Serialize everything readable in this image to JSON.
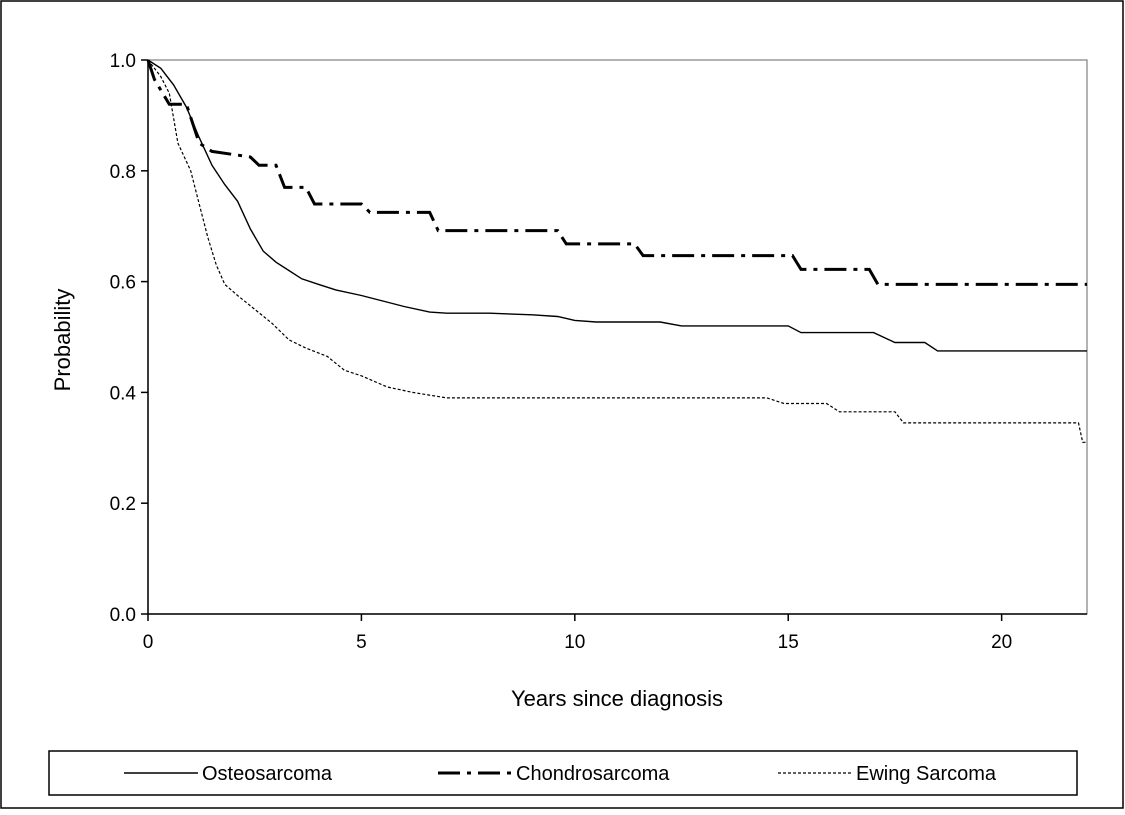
{
  "chart_data": {
    "type": "line",
    "title": "",
    "xlabel": "Years since diagnosis",
    "ylabel": "Probability",
    "xlim": [
      0,
      22
    ],
    "ylim": [
      0.0,
      1.0
    ],
    "x_ticks": [
      0,
      5,
      10,
      15,
      20
    ],
    "y_ticks": [
      0.0,
      0.2,
      0.4,
      0.6,
      0.8,
      1.0
    ],
    "x_tick_labels": [
      "0",
      "5",
      "10",
      "15",
      "20"
    ],
    "y_tick_labels": [
      "0.0",
      "0.2",
      "0.4",
      "0.6",
      "0.8",
      "1.0"
    ],
    "grid": false,
    "legend_position": "bottom",
    "series": [
      {
        "name": "Osteosarcoma",
        "style": "solid",
        "color": "#000000",
        "points": [
          [
            0,
            1.0
          ],
          [
            0.3,
            0.985
          ],
          [
            0.6,
            0.955
          ],
          [
            0.9,
            0.915
          ],
          [
            1.2,
            0.86
          ],
          [
            1.5,
            0.81
          ],
          [
            1.8,
            0.775
          ],
          [
            2.1,
            0.745
          ],
          [
            2.4,
            0.695
          ],
          [
            2.7,
            0.655
          ],
          [
            3.0,
            0.635
          ],
          [
            3.3,
            0.62
          ],
          [
            3.6,
            0.605
          ],
          [
            4.0,
            0.595
          ],
          [
            4.4,
            0.585
          ],
          [
            5.0,
            0.575
          ],
          [
            5.5,
            0.565
          ],
          [
            6.0,
            0.555
          ],
          [
            6.6,
            0.545
          ],
          [
            7.0,
            0.543
          ],
          [
            8.0,
            0.543
          ],
          [
            9.0,
            0.54
          ],
          [
            9.6,
            0.537
          ],
          [
            10.0,
            0.53
          ],
          [
            10.5,
            0.527
          ],
          [
            12.0,
            0.527
          ],
          [
            12.5,
            0.52
          ],
          [
            15.0,
            0.52
          ],
          [
            15.3,
            0.508
          ],
          [
            16.0,
            0.508
          ],
          [
            17.0,
            0.508
          ],
          [
            17.5,
            0.49
          ],
          [
            18.2,
            0.49
          ],
          [
            18.5,
            0.475
          ],
          [
            22.0,
            0.475
          ]
        ]
      },
      {
        "name": "Chondrosarcoma",
        "style": "dashdot",
        "color": "#000000",
        "points": [
          [
            0,
            1.0
          ],
          [
            0.15,
            0.965
          ],
          [
            0.5,
            0.92
          ],
          [
            0.9,
            0.92
          ],
          [
            1.2,
            0.85
          ],
          [
            1.5,
            0.835
          ],
          [
            2.4,
            0.825
          ],
          [
            2.6,
            0.81
          ],
          [
            3.0,
            0.81
          ],
          [
            3.2,
            0.77
          ],
          [
            3.7,
            0.77
          ],
          [
            3.9,
            0.74
          ],
          [
            5.0,
            0.74
          ],
          [
            5.2,
            0.725
          ],
          [
            6.6,
            0.725
          ],
          [
            6.8,
            0.692
          ],
          [
            9.6,
            0.692
          ],
          [
            9.8,
            0.668
          ],
          [
            11.4,
            0.668
          ],
          [
            11.6,
            0.647
          ],
          [
            15.1,
            0.647
          ],
          [
            15.3,
            0.622
          ],
          [
            16.9,
            0.622
          ],
          [
            17.1,
            0.595
          ],
          [
            22.0,
            0.595
          ]
        ]
      },
      {
        "name": "Ewing Sarcoma",
        "style": "dotted",
        "color": "#000000",
        "points": [
          [
            0,
            1.0
          ],
          [
            0.3,
            0.97
          ],
          [
            0.5,
            0.94
          ],
          [
            0.7,
            0.85
          ],
          [
            1.0,
            0.8
          ],
          [
            1.2,
            0.74
          ],
          [
            1.4,
            0.68
          ],
          [
            1.6,
            0.63
          ],
          [
            1.8,
            0.595
          ],
          [
            2.1,
            0.575
          ],
          [
            2.5,
            0.55
          ],
          [
            2.9,
            0.525
          ],
          [
            3.3,
            0.495
          ],
          [
            3.7,
            0.48
          ],
          [
            4.2,
            0.465
          ],
          [
            4.6,
            0.44
          ],
          [
            5.0,
            0.43
          ],
          [
            5.6,
            0.41
          ],
          [
            6.2,
            0.4
          ],
          [
            7.0,
            0.39
          ],
          [
            8.0,
            0.39
          ],
          [
            14.5,
            0.39
          ],
          [
            14.9,
            0.38
          ],
          [
            15.9,
            0.38
          ],
          [
            16.2,
            0.365
          ],
          [
            17.5,
            0.365
          ],
          [
            17.7,
            0.345
          ],
          [
            21.8,
            0.345
          ],
          [
            21.9,
            0.31
          ],
          [
            22.0,
            0.31
          ]
        ]
      }
    ]
  }
}
